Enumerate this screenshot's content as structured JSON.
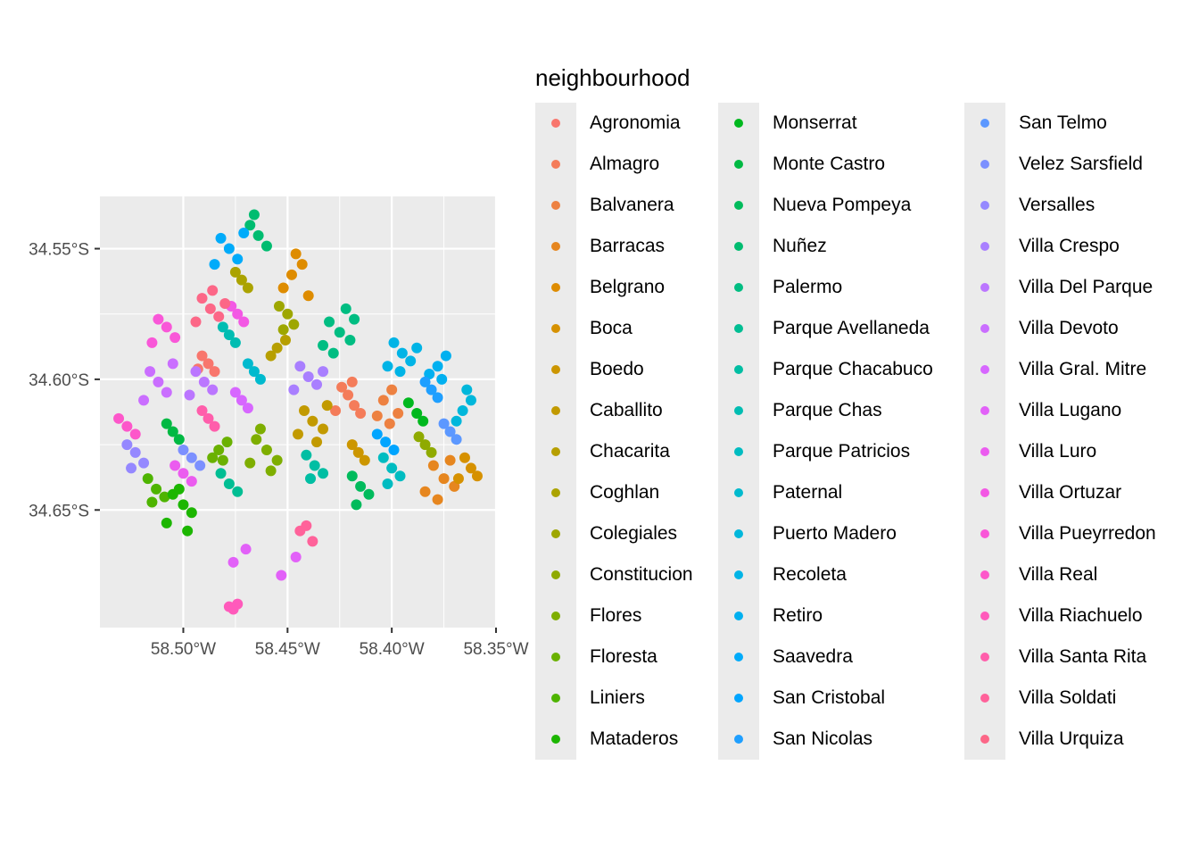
{
  "chart_data": {
    "type": "scatter",
    "title": "",
    "xlabel": "",
    "ylabel": "",
    "xlim": [
      -58.54,
      -58.35
    ],
    "ylim": [
      -34.695,
      -34.53
    ],
    "x_ticks": [
      -58.5,
      -58.45,
      -58.4,
      -58.35
    ],
    "x_tick_labels": [
      "58.50°W",
      "58.45°W",
      "58.40°W",
      "58.35°W"
    ],
    "y_ticks": [
      -34.55,
      -34.6,
      -34.65
    ],
    "y_tick_labels": [
      "34.55°S",
      "34.60°S",
      "34.65°S"
    ],
    "grid": true,
    "legend_position": "right",
    "legend_title": "neighbourhood",
    "series": [
      {
        "name": "Agronomia",
        "color": "#F8766D",
        "x": [
          -58.488,
          -58.491,
          -58.485,
          -58.493
        ],
        "y": [
          -34.594,
          -34.591,
          -34.597,
          -34.596
        ]
      },
      {
        "name": "Almagro",
        "color": "#F47C5A",
        "x": [
          -58.421,
          -58.418,
          -58.424,
          -58.415,
          -58.427,
          -58.419
        ],
        "y": [
          -34.606,
          -34.61,
          -34.603,
          -34.613,
          -34.612,
          -34.601
        ]
      },
      {
        "name": "Balvanera",
        "color": "#ED8141",
        "x": [
          -58.404,
          -58.4,
          -58.397,
          -58.407,
          -58.401
        ],
        "y": [
          -34.608,
          -34.604,
          -34.613,
          -34.614,
          -34.617
        ]
      },
      {
        "name": "Barracas",
        "color": "#E6861F",
        "x": [
          -58.375,
          -58.38,
          -58.37,
          -58.384,
          -58.372,
          -58.378
        ],
        "y": [
          -34.638,
          -34.633,
          -34.641,
          -34.643,
          -34.631,
          -34.646
        ]
      },
      {
        "name": "Belgrano",
        "color": "#DE8C00",
        "x": [
          -58.448,
          -58.443,
          -58.452,
          -58.44,
          -58.446
        ],
        "y": [
          -34.56,
          -34.556,
          -34.565,
          -34.568,
          -34.552
        ]
      },
      {
        "name": "Boca",
        "color": "#D69100",
        "x": [
          -58.362,
          -58.365,
          -58.359,
          -58.368
        ],
        "y": [
          -34.634,
          -34.63,
          -34.637,
          -34.638
        ]
      },
      {
        "name": "Boedo",
        "color": "#CC9600",
        "x": [
          -58.416,
          -58.419,
          -58.413
        ],
        "y": [
          -34.628,
          -34.625,
          -34.631
        ]
      },
      {
        "name": "Caballito",
        "color": "#C29A00",
        "x": [
          -58.438,
          -58.442,
          -58.433,
          -58.445,
          -58.436,
          -58.431
        ],
        "y": [
          -34.616,
          -34.612,
          -34.619,
          -34.621,
          -34.624,
          -34.61
        ]
      },
      {
        "name": "Chacarita",
        "color": "#B79F00",
        "x": [
          -58.455,
          -58.451,
          -58.458
        ],
        "y": [
          -34.588,
          -34.585,
          -34.591
        ]
      },
      {
        "name": "Coghlan",
        "color": "#ABA300",
        "x": [
          -58.472,
          -58.475,
          -58.469
        ],
        "y": [
          -34.562,
          -34.559,
          -34.565
        ]
      },
      {
        "name": "Colegiales",
        "color": "#9EA700",
        "x": [
          -58.45,
          -58.454,
          -58.447,
          -58.452
        ],
        "y": [
          -34.575,
          -34.572,
          -34.579,
          -34.581
        ]
      },
      {
        "name": "Constitucion",
        "color": "#8FAA00",
        "x": [
          -58.384,
          -58.387,
          -58.381
        ],
        "y": [
          -34.625,
          -34.622,
          -34.628
        ]
      },
      {
        "name": "Flores",
        "color": "#7EAE00",
        "x": [
          -58.46,
          -58.465,
          -58.455,
          -58.468,
          -58.458,
          -58.463
        ],
        "y": [
          -34.627,
          -34.623,
          -34.631,
          -34.632,
          -34.635,
          -34.619
        ]
      },
      {
        "name": "Floresta",
        "color": "#6AB100",
        "x": [
          -58.483,
          -58.479,
          -58.486,
          -58.481
        ],
        "y": [
          -34.627,
          -34.624,
          -34.63,
          -34.631
        ]
      },
      {
        "name": "Liniers",
        "color": "#4EB400",
        "x": [
          -58.513,
          -58.517,
          -58.509,
          -58.515
        ],
        "y": [
          -34.642,
          -34.638,
          -34.645,
          -34.647
        ]
      },
      {
        "name": "Mataderos",
        "color": "#1CB600",
        "x": [
          -58.5,
          -58.505,
          -58.496,
          -58.508,
          -58.498,
          -58.502
        ],
        "y": [
          -34.648,
          -34.644,
          -34.651,
          -34.655,
          -34.658,
          -34.642
        ]
      },
      {
        "name": "Monserrat",
        "color": "#00B81E",
        "x": [
          -58.388,
          -58.392,
          -58.385
        ],
        "y": [
          -34.613,
          -34.609,
          -34.616
        ]
      },
      {
        "name": "Monte Castro",
        "color": "#00B943",
        "x": [
          -58.505,
          -58.508,
          -58.502
        ],
        "y": [
          -34.62,
          -34.617,
          -34.623
        ]
      },
      {
        "name": "Nueva Pompeya",
        "color": "#00BB5C",
        "x": [
          -58.415,
          -58.419,
          -58.411,
          -58.417
        ],
        "y": [
          -34.641,
          -34.637,
          -34.644,
          -34.648
        ]
      },
      {
        "name": "Nuñez",
        "color": "#00BC70",
        "x": [
          -58.464,
          -58.468,
          -58.46,
          -58.466
        ],
        "y": [
          -34.545,
          -34.541,
          -34.549,
          -34.537
        ]
      },
      {
        "name": "Palermo",
        "color": "#00BD82",
        "x": [
          -58.425,
          -58.43,
          -58.42,
          -58.433,
          -58.418,
          -58.428,
          -58.422
        ],
        "y": [
          -34.582,
          -34.578,
          -34.585,
          -34.587,
          -34.577,
          -34.59,
          -34.573
        ]
      },
      {
        "name": "Parque Avellaneda",
        "color": "#00BE93",
        "x": [
          -58.478,
          -58.482,
          -58.474
        ],
        "y": [
          -34.64,
          -34.636,
          -34.643
        ]
      },
      {
        "name": "Parque Chacabuco",
        "color": "#00BEA3",
        "x": [
          -58.437,
          -58.441,
          -58.433,
          -58.439
        ],
        "y": [
          -34.633,
          -34.629,
          -34.636,
          -34.638
        ]
      },
      {
        "name": "Parque Chas",
        "color": "#00BDB2",
        "x": [
          -58.478,
          -58.481,
          -58.475
        ],
        "y": [
          -34.583,
          -34.58,
          -34.586
        ]
      },
      {
        "name": "Parque Patricios",
        "color": "#00BCC1",
        "x": [
          -58.4,
          -58.404,
          -58.396,
          -58.402
        ],
        "y": [
          -34.634,
          -34.63,
          -34.637,
          -34.64
        ]
      },
      {
        "name": "Paternal",
        "color": "#00BACE",
        "x": [
          -58.466,
          -58.469,
          -58.463
        ],
        "y": [
          -34.597,
          -34.594,
          -34.6
        ]
      },
      {
        "name": "Puerto Madero",
        "color": "#00B7DB",
        "x": [
          -58.366,
          -58.362,
          -58.369,
          -58.364
        ],
        "y": [
          -34.612,
          -34.608,
          -34.616,
          -34.604
        ]
      },
      {
        "name": "Recoleta",
        "color": "#00B4E6",
        "x": [
          -58.395,
          -58.399,
          -58.391,
          -58.402,
          -58.388,
          -58.396
        ],
        "y": [
          -34.59,
          -34.586,
          -34.593,
          -34.595,
          -34.588,
          -34.597
        ]
      },
      {
        "name": "Retiro",
        "color": "#00B0F0",
        "x": [
          -58.378,
          -58.374,
          -58.382,
          -58.376
        ],
        "y": [
          -34.595,
          -34.591,
          -34.598,
          -34.6
        ]
      },
      {
        "name": "Saavedra",
        "color": "#00ABFA",
        "x": [
          -58.478,
          -58.482,
          -58.474,
          -58.485,
          -58.471
        ],
        "y": [
          -34.55,
          -34.546,
          -34.554,
          -34.556,
          -34.544
        ]
      },
      {
        "name": "San Cristobal",
        "color": "#00A5FF",
        "x": [
          -58.403,
          -58.407,
          -58.399
        ],
        "y": [
          -34.624,
          -34.621,
          -34.627
        ]
      },
      {
        "name": "San Nicolas",
        "color": "#1F9FFF",
        "x": [
          -58.381,
          -58.384,
          -58.378
        ],
        "y": [
          -34.604,
          -34.601,
          -34.607
        ]
      },
      {
        "name": "San Telmo",
        "color": "#5C98FF",
        "x": [
          -58.372,
          -58.375,
          -58.369
        ],
        "y": [
          -34.62,
          -34.617,
          -34.623
        ]
      },
      {
        "name": "Velez Sarsfield",
        "color": "#7C90FF",
        "x": [
          -58.496,
          -58.5,
          -58.492
        ],
        "y": [
          -34.63,
          -34.627,
          -34.633
        ]
      },
      {
        "name": "Versalles",
        "color": "#9588FF",
        "x": [
          -58.523,
          -58.527,
          -58.519,
          -58.525
        ],
        "y": [
          -34.628,
          -34.625,
          -34.632,
          -34.634
        ]
      },
      {
        "name": "Villa Crespo",
        "color": "#A97FFF",
        "x": [
          -58.44,
          -58.444,
          -58.436,
          -58.447,
          -58.433
        ],
        "y": [
          -34.599,
          -34.595,
          -34.602,
          -34.604,
          -34.597
        ]
      },
      {
        "name": "Villa Del Parque",
        "color": "#BB76FF",
        "x": [
          -58.49,
          -58.494,
          -58.486,
          -58.497
        ],
        "y": [
          -34.601,
          -34.597,
          -34.604,
          -34.606
        ]
      },
      {
        "name": "Villa Devoto",
        "color": "#CA6EFF",
        "x": [
          -58.512,
          -58.516,
          -58.508,
          -58.519,
          -58.505
        ],
        "y": [
          -34.601,
          -34.597,
          -34.605,
          -34.608,
          -34.594
        ]
      },
      {
        "name": "Villa Gral. Mitre",
        "color": "#D767FF",
        "x": [
          -58.472,
          -58.475,
          -58.469
        ],
        "y": [
          -34.608,
          -34.605,
          -34.611
        ]
      },
      {
        "name": "Villa Lugano",
        "color": "#E261F8",
        "x": [
          -58.47,
          -58.476,
          -58.446,
          -58.453
        ],
        "y": [
          -34.665,
          -34.67,
          -34.668,
          -34.675
        ]
      },
      {
        "name": "Villa Luro",
        "color": "#EB5CEF",
        "x": [
          -58.5,
          -58.504,
          -58.496
        ],
        "y": [
          -34.636,
          -34.633,
          -34.639
        ]
      },
      {
        "name": "Villa Ortuzar",
        "color": "#F358E4",
        "x": [
          -58.474,
          -58.477,
          -58.471
        ],
        "y": [
          -34.575,
          -34.572,
          -34.578
        ]
      },
      {
        "name": "Villa Pueyrredon",
        "color": "#F957D8",
        "x": [
          -58.508,
          -58.512,
          -58.504,
          -58.515
        ],
        "y": [
          -34.58,
          -34.577,
          -34.584,
          -34.586
        ]
      },
      {
        "name": "Villa Real",
        "color": "#FD57CA",
        "x": [
          -58.527,
          -58.531,
          -58.523
        ],
        "y": [
          -34.618,
          -34.615,
          -34.621
        ]
      },
      {
        "name": "Villa Riachuelo",
        "color": "#FF5ABB",
        "x": [
          -58.478,
          -58.474,
          -58.476
        ],
        "y": [
          -34.687,
          -34.686,
          -34.688
        ]
      },
      {
        "name": "Villa Santa Rita",
        "color": "#FF5EAB",
        "x": [
          -58.488,
          -58.491,
          -58.485
        ],
        "y": [
          -34.615,
          -34.612,
          -34.618
        ]
      },
      {
        "name": "Villa Soldati",
        "color": "#FF629A",
        "x": [
          -58.444,
          -58.438,
          -58.441
        ],
        "y": [
          -34.658,
          -34.662,
          -34.656
        ]
      },
      {
        "name": "Villa Urquiza",
        "color": "#FC6787",
        "x": [
          -58.487,
          -58.491,
          -58.483,
          -58.494,
          -58.48,
          -58.486
        ],
        "y": [
          -34.573,
          -34.569,
          -34.576,
          -34.578,
          -34.571,
          -34.566
        ]
      }
    ]
  }
}
